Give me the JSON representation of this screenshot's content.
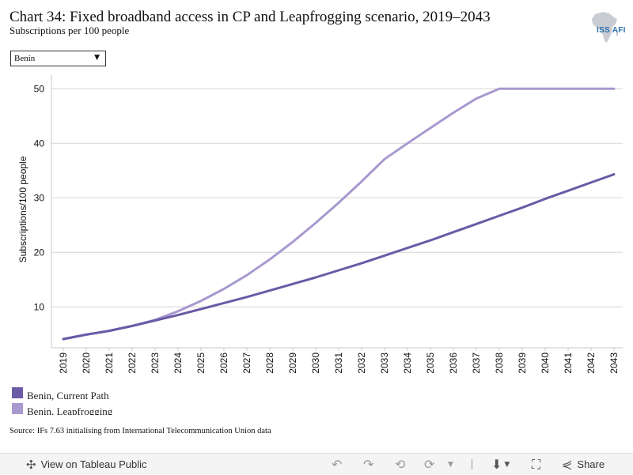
{
  "header": {
    "title": "Chart 34: Fixed broadband access in CP and Leapfrogging scenario, 2019–2043",
    "subtitle": "Subscriptions per 100 people",
    "logo_text": "ISS AFI"
  },
  "filter": {
    "selected": "Benin"
  },
  "chart_data": {
    "type": "line",
    "title": "Chart 34: Fixed broadband access in CP and Leapfrogging scenario, 2019–2043",
    "subtitle": "Subscriptions per 100 people",
    "xlabel": "",
    "ylabel": "Subscriptions/100 people",
    "x": [
      "2019",
      "2020",
      "2021",
      "2022",
      "2023",
      "2024",
      "2025",
      "2026",
      "2027",
      "2028",
      "2029",
      "2030",
      "2031",
      "2032",
      "2033",
      "2034",
      "2035",
      "2036",
      "2037",
      "2038",
      "2039",
      "2040",
      "2041",
      "2042",
      "2043"
    ],
    "yticks": [
      10,
      20,
      30,
      40,
      50
    ],
    "ylim": [
      2.5,
      52.5
    ],
    "grid": true,
    "legend_position": "bottom-left",
    "series": [
      {
        "name": "Benin, Current Path",
        "color": "#6b5aa6",
        "values": [
          4.1,
          4.9,
          5.6,
          6.5,
          7.5,
          8.5,
          9.6,
          10.7,
          11.8,
          13.0,
          14.2,
          15.4,
          16.7,
          18.0,
          19.4,
          20.8,
          22.2,
          23.7,
          25.2,
          26.7,
          28.2,
          29.8,
          31.3,
          32.8,
          34.3
        ]
      },
      {
        "name": "Benin, Leapfrogging",
        "color": "#a899cf",
        "values": [
          4.1,
          4.9,
          5.6,
          6.5,
          7.6,
          9.2,
          11.1,
          13.3,
          15.8,
          18.7,
          21.9,
          25.4,
          29.1,
          33.0,
          37.1,
          40.0,
          42.8,
          45.6,
          48.2,
          50.0,
          50.0,
          50.0,
          50.0,
          50.0,
          50.0
        ]
      }
    ]
  },
  "source": "Source: IFs 7.63 initialising from International Telecommunication Union data",
  "footer": {
    "view_label": "View on Tableau Public",
    "share_label": "Share",
    "icons": [
      "tableau-icon",
      "undo-icon",
      "redo-icon",
      "revert-icon",
      "refresh-icon",
      "download-icon",
      "fullscreen-icon",
      "share-icon"
    ]
  }
}
